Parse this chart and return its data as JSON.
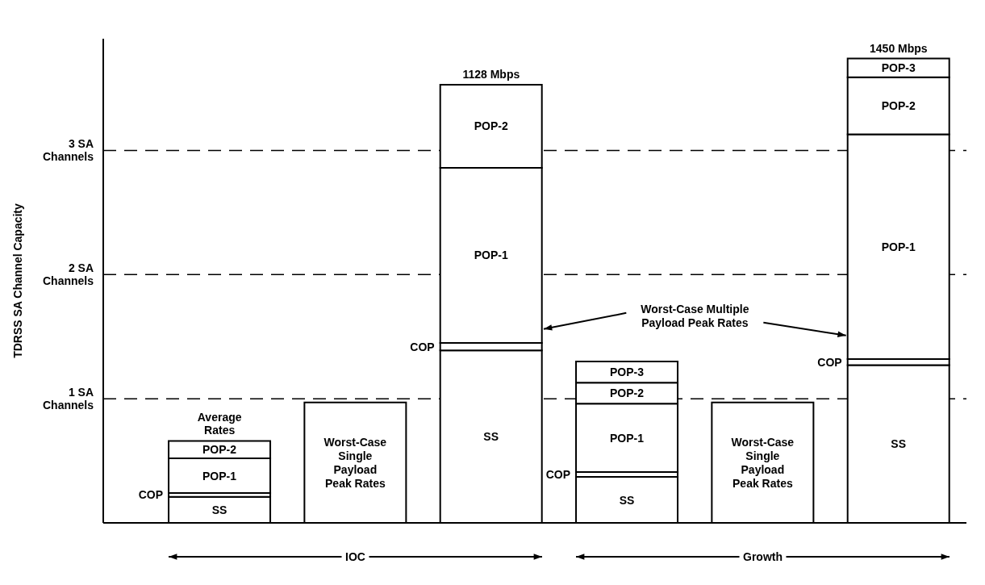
{
  "chart_data": {
    "type": "bar",
    "stacked": true,
    "ylabel": "TDRSS SA Channel Capacity",
    "categories": [
      null,
      null,
      null,
      null,
      null,
      null
    ],
    "series": [
      {
        "name": "SS",
        "color": "#ffffff",
        "values": [
          0.21,
          null,
          1.39,
          0.37,
          null,
          1.27
        ]
      },
      {
        "name": "COP",
        "color": "#ffffff",
        "values": [
          0.03,
          null,
          0.06,
          0.04,
          null,
          0.05
        ]
      },
      {
        "name": "POP-1",
        "color": "#ffffff",
        "values": [
          0.28,
          null,
          1.41,
          0.55,
          null,
          1.81
        ]
      },
      {
        "name": "POP-2",
        "color": "#ffffff",
        "values": [
          0.14,
          null,
          0.67,
          0.17,
          null,
          0.46
        ]
      },
      {
        "name": "POP-3",
        "color": "#ffffff",
        "values": [
          null,
          null,
          null,
          0.17,
          null,
          0.15
        ]
      },
      {
        "name": "Worst-Case Single Payload Peak Rates",
        "color": "#ffffff",
        "values": [
          null,
          0.97,
          null,
          null,
          0.97,
          null
        ]
      }
    ],
    "ylim": [
      0,
      3.9
    ],
    "yticks": [
      {
        "value": 1,
        "label": "1 SA Channels"
      },
      {
        "value": 2,
        "label": "2 SA Channels"
      },
      {
        "value": 3,
        "label": "3 SA Channels"
      }
    ],
    "grid": "y",
    "tick_labels": "y",
    "annotations": [
      "Average Rates",
      "Worst-Case Multiple Payload Peak Rates",
      "IOC",
      "Growth",
      "1128 Mbps",
      "1450 Mbps"
    ]
  }
}
